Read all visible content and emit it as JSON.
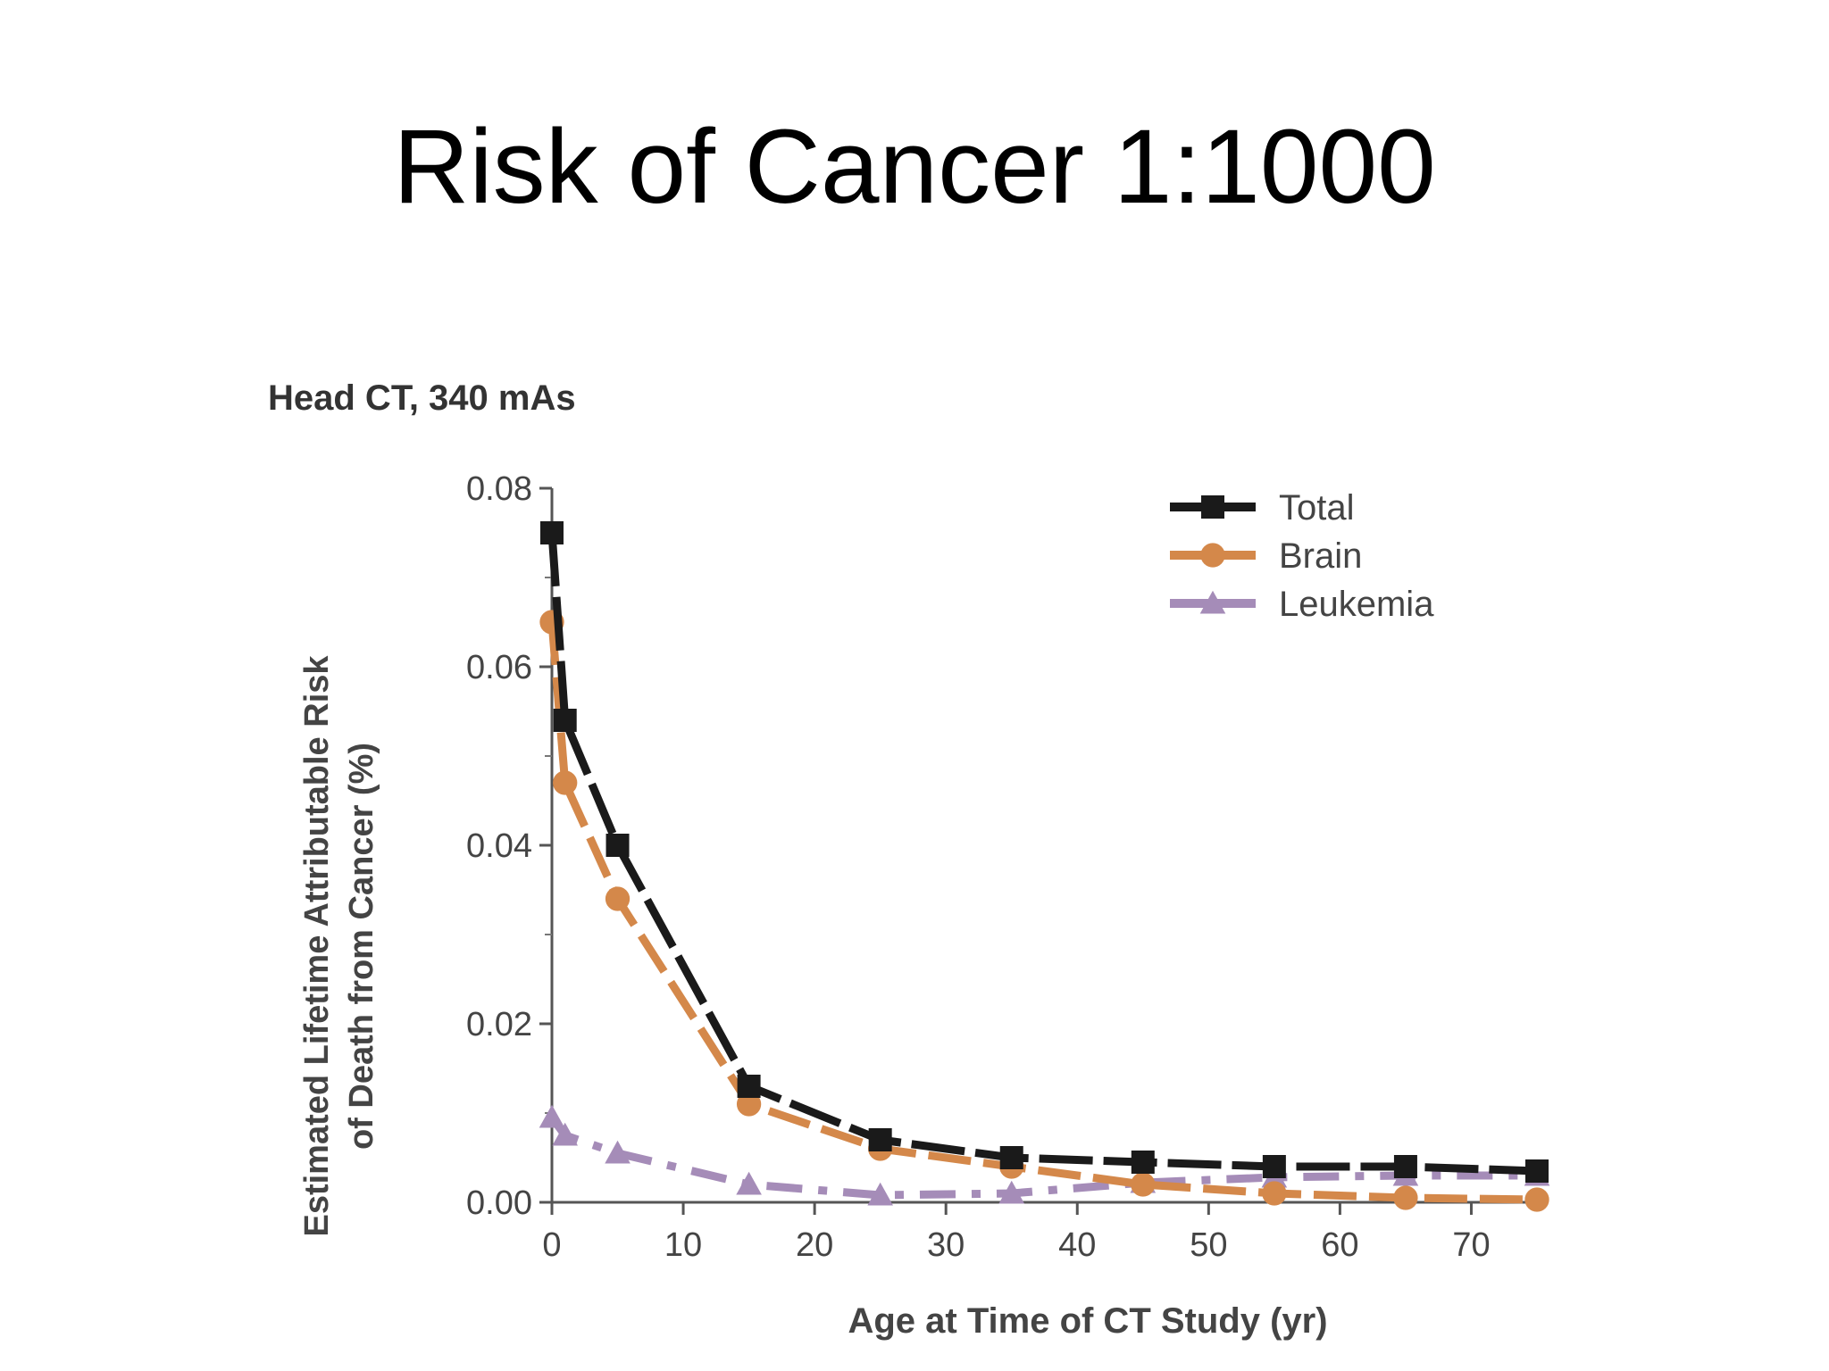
{
  "slide": {
    "title": "Risk of Cancer 1:1000"
  },
  "chart_data": {
    "type": "line",
    "title": "Head CT, 340 mAs",
    "xlabel": "Age at Time of CT Study (yr)",
    "ylabel_lines": [
      "Estimated Lifetime Attributable Risk",
      "of Death from Cancer (%)"
    ],
    "xlim": [
      0,
      75
    ],
    "ylim": [
      0,
      0.08
    ],
    "x_ticks": [
      0,
      10,
      20,
      30,
      40,
      50,
      60,
      70
    ],
    "x_tick_labels": [
      "0",
      "10",
      "20",
      "30",
      "40",
      "50",
      "60",
      "70"
    ],
    "y_ticks": [
      0,
      0.02,
      0.04,
      0.06,
      0.08
    ],
    "y_tick_labels": [
      "0.00",
      "0.02",
      "0.04",
      "0.06",
      "0.08"
    ],
    "grid": false,
    "legend_position": "top-right",
    "x": [
      0,
      1,
      5,
      15,
      25,
      35,
      45,
      55,
      65,
      75
    ],
    "series": [
      {
        "name": "Total",
        "color": "#1a1a1a",
        "marker": "square",
        "values": [
          0.075,
          0.054,
          0.04,
          0.013,
          0.007,
          0.005,
          0.0045,
          0.004,
          0.004,
          0.0035
        ]
      },
      {
        "name": "Brain",
        "color": "#d4884a",
        "marker": "circle",
        "values": [
          0.065,
          0.047,
          0.034,
          0.011,
          0.006,
          0.004,
          0.002,
          0.001,
          0.0005,
          0.0003
        ]
      },
      {
        "name": "Leukemia",
        "color": "#a58cb8",
        "marker": "triangle",
        "values": [
          0.0095,
          0.0075,
          0.0055,
          0.002,
          0.0008,
          0.001,
          0.0022,
          0.0028,
          0.003,
          0.003
        ]
      }
    ]
  }
}
